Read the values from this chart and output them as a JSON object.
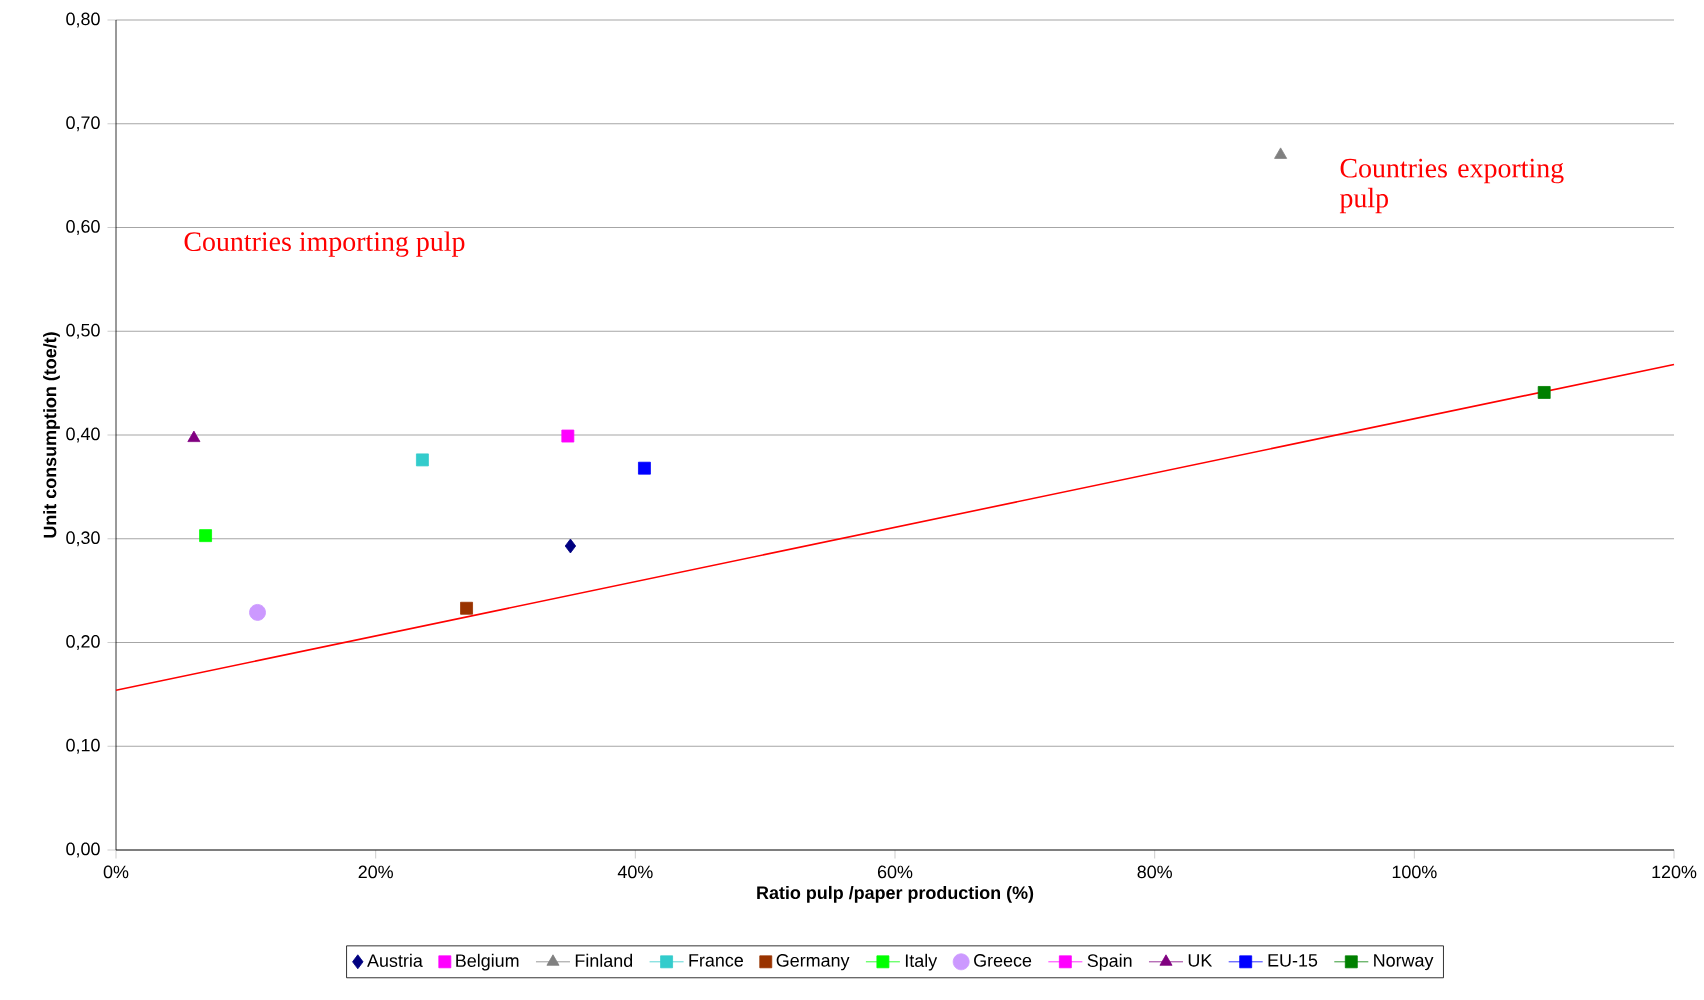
{
  "chart_data": {
    "type": "scatter",
    "xlabel": "Ratio pulp /paper production (%)",
    "ylabel": "Unit consumption (toe/t)",
    "xlim": [
      0,
      120
    ],
    "ylim": [
      0,
      0.8
    ],
    "xticks": [
      {
        "value": 0,
        "label": "0%"
      },
      {
        "value": 20,
        "label": "20%"
      },
      {
        "value": 40,
        "label": "40%"
      },
      {
        "value": 60,
        "label": "60%"
      },
      {
        "value": 80,
        "label": "80%"
      },
      {
        "value": 100,
        "label": "100%"
      },
      {
        "value": 120,
        "label": "120%"
      }
    ],
    "yticks": [
      {
        "value": 0,
        "label": "0,00"
      },
      {
        "value": 0.1,
        "label": "0,10"
      },
      {
        "value": 0.2,
        "label": "0,20"
      },
      {
        "value": 0.3,
        "label": "0,30"
      },
      {
        "value": 0.4,
        "label": "0,40"
      },
      {
        "value": 0.5,
        "label": "0,50"
      },
      {
        "value": 0.6,
        "label": "0,60"
      },
      {
        "value": 0.7,
        "label": "0,70"
      },
      {
        "value": 0.8,
        "label": "0,80"
      }
    ],
    "grid": "y",
    "legend": "bottom",
    "annotations": [
      "Countries importing pulp",
      "Countries exporting pulp"
    ],
    "series": [
      {
        "name": "Austria",
        "color": "#000080",
        "marker": "diamond",
        "x": [
          35.0
        ],
        "values": [
          0.293
        ]
      },
      {
        "name": "Belgium",
        "color": "#ff00ff",
        "marker": "square",
        "values": [
          null
        ]
      },
      {
        "name": "Finland",
        "color": "#808080",
        "marker": "triangle",
        "line_style": "solid",
        "x": [
          89.7
        ],
        "values": [
          0.67
        ]
      },
      {
        "name": "France",
        "color": "#33cccc",
        "marker": "square",
        "line_style": "solid",
        "x": [
          23.6
        ],
        "values": [
          0.376
        ]
      },
      {
        "name": "Germany",
        "color": "#993300",
        "marker": "square",
        "x": [
          27.0
        ],
        "values": [
          0.233
        ]
      },
      {
        "name": "Italy",
        "color": "#00ff00",
        "marker": "square",
        "line_style": "solid",
        "x": [
          6.9
        ],
        "values": [
          0.303
        ]
      },
      {
        "name": "Greece",
        "color": "#cc99ff",
        "marker": "circle",
        "x": [
          10.9
        ],
        "values": [
          0.229
        ]
      },
      {
        "name": "Spain",
        "color": "#ff00ff",
        "marker": "square",
        "line_style": "solid",
        "x": [
          34.8
        ],
        "values": [
          0.399
        ]
      },
      {
        "name": "UK",
        "color": "#800080",
        "marker": "triangle",
        "line_style": "solid",
        "x": [
          6.0
        ],
        "values": [
          0.397
        ]
      },
      {
        "name": "EU-15",
        "color": "#0000ff",
        "marker": "square",
        "line_style": "solid",
        "x": [
          40.7
        ],
        "values": [
          0.368
        ]
      },
      {
        "name": "Norway",
        "color": "#008000",
        "marker": "square",
        "line_style": "solid",
        "x": [
          110.0
        ],
        "values": [
          0.441
        ]
      },
      {
        "type": "line",
        "color": "#ff0000",
        "marker": "none",
        "line_style": "solid",
        "x": [
          0,
          120
        ],
        "values": [
          0.154,
          0.468
        ]
      }
    ]
  }
}
